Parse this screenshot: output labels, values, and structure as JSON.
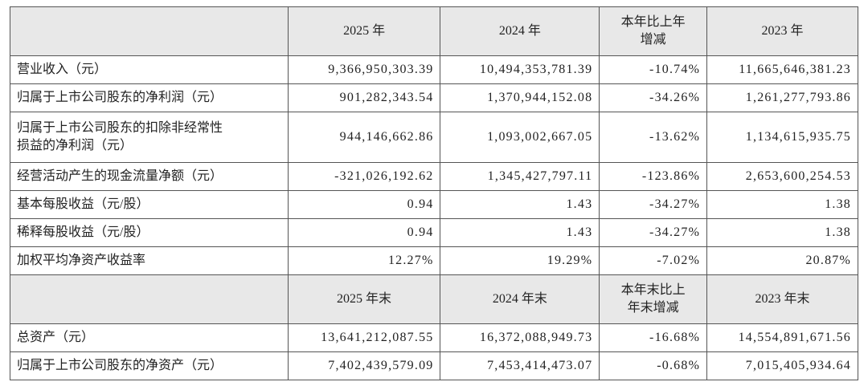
{
  "table": {
    "header": [
      "2025 年",
      "2024 年",
      "本年比上年增减",
      "2023 年"
    ],
    "rows": [
      [
        "营业收入（元）",
        "9,366,950,303.39",
        "10,494,353,781.39",
        "-10.74%",
        "11,665,646,381.23"
      ],
      [
        "归属于上市公司股东的净利润（元）",
        "901,282,343.54",
        "1,370,944,152.08",
        "-34.26%",
        "1,261,277,793.86"
      ],
      [
        "归属于上市公司股东的扣除非经常性损益的净利润（元）",
        "944,146,662.86",
        "1,093,002,667.05",
        "-13.62%",
        "1,134,615,935.75"
      ],
      [
        "经营活动产生的现金流量净额（元）",
        "-321,026,192.62",
        "1,345,427,797.11",
        "-123.86%",
        "2,653,600,254.53"
      ],
      [
        "基本每股收益（元/股）",
        "0.94",
        "1.43",
        "-34.27%",
        "1.38"
      ],
      [
        "稀释每股收益（元/股）",
        "0.94",
        "1.43",
        "-34.27%",
        "1.38"
      ],
      [
        "加权平均净资产收益率",
        "12.27%",
        "19.29%",
        "-7.02%",
        "20.87%"
      ]
    ],
    "header2": [
      "2025 年末",
      "2024 年末",
      "本年末比上年末增减",
      "2023 年末"
    ],
    "rows2": [
      [
        "总资产（元）",
        "13,641,212,087.55",
        "16,372,088,949.73",
        "-16.68%",
        "14,554,891,671.56"
      ],
      [
        "归属于上市公司股东的净资产（元）",
        "7,402,439,579.09",
        "7,453,414,473.07",
        "-0.68%",
        "7,015,405,934.64"
      ]
    ]
  }
}
